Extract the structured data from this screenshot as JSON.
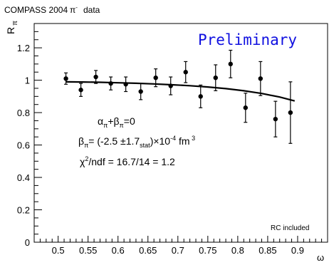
{
  "header": {
    "experiment": "COMPASS 2004",
    "particle": "π",
    "particle_sup": "-",
    "data_word": "data"
  },
  "chart_data": {
    "type": "scatter",
    "ylabel": "R",
    "ylabel_sub": "π",
    "xlabel": "ω",
    "xlim": [
      0.46,
      0.95
    ],
    "ylim": [
      0.0,
      1.35
    ],
    "xticks": [
      0.5,
      0.55,
      0.6,
      0.65,
      0.7,
      0.75,
      0.8,
      0.85,
      0.9
    ],
    "xtick_labels": [
      "0.5",
      "0.55",
      "0.6",
      "0.65",
      "0.7",
      "0.75",
      "0.8",
      "0.85",
      "0.9"
    ],
    "yticks": [
      0,
      0.2,
      0.4,
      0.6,
      0.8,
      1.0,
      1.2
    ],
    "ytick_labels": [
      "0",
      "0.2",
      "0.4",
      "0.6",
      "0.8",
      "1",
      "1.2"
    ],
    "series": [
      {
        "x": [
          0.513,
          0.538,
          0.563,
          0.588,
          0.613,
          0.638,
          0.663,
          0.688,
          0.713,
          0.738,
          0.763,
          0.788,
          0.813,
          0.838,
          0.863,
          0.888
        ],
        "y": [
          1.01,
          0.94,
          1.02,
          0.98,
          0.975,
          0.93,
          1.015,
          0.965,
          1.05,
          0.9,
          1.015,
          1.1,
          0.83,
          1.01,
          0.76,
          0.8
        ],
        "yerr": [
          0.035,
          0.04,
          0.04,
          0.04,
          0.045,
          0.05,
          0.055,
          0.055,
          0.065,
          0.07,
          0.08,
          0.085,
          0.09,
          0.105,
          0.11,
          0.19
        ]
      }
    ],
    "fit_curve": {
      "x": [
        0.513,
        0.54,
        0.57,
        0.6,
        0.63,
        0.66,
        0.69,
        0.72,
        0.75,
        0.78,
        0.81,
        0.84,
        0.87,
        0.895
      ],
      "y": [
        0.99,
        0.989,
        0.987,
        0.984,
        0.981,
        0.977,
        0.972,
        0.966,
        0.958,
        0.948,
        0.935,
        0.918,
        0.896,
        0.872
      ]
    },
    "annotations": {
      "preliminary": "Preliminary",
      "rc": "RC included",
      "line1": "α_π+β_π=0",
      "line2": "β_π= (-2.5 ±1.7_stat)×10^-4 fm^3",
      "line3": "χ^2/ndf = 16.7/14 = 1.2"
    }
  }
}
